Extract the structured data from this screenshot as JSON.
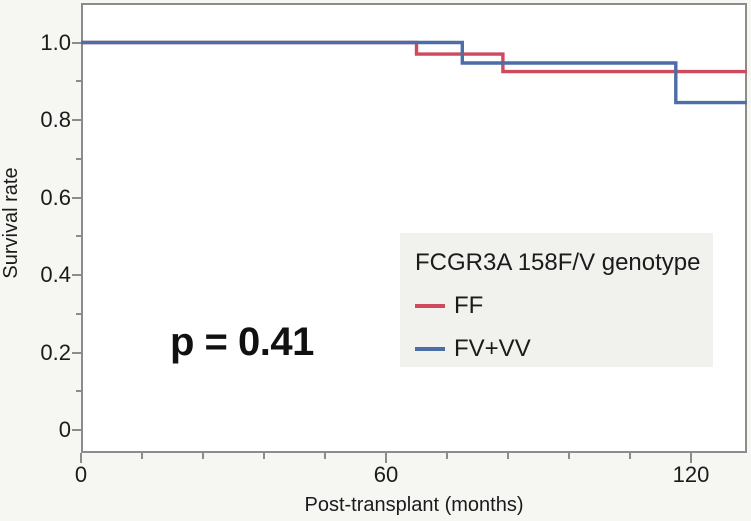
{
  "chart_data": {
    "type": "line",
    "subtype": "kaplan-meier-step-curve",
    "title": "",
    "xlabel": "Post-transplant (months)",
    "ylabel": "Survival rate",
    "xlim": [
      0,
      131
    ],
    "ylim": [
      -0.06,
      1.1
    ],
    "grid": false,
    "annotation": "p = 0.41",
    "x_axis": {
      "major_ticks": [
        {
          "value": 0,
          "label": "0"
        },
        {
          "value": 60,
          "label": "60"
        },
        {
          "value": 120,
          "label": "120"
        }
      ],
      "minor_tick_values": [
        12,
        24,
        36,
        48,
        72,
        84,
        96,
        108
      ]
    },
    "y_axis": {
      "major_ticks": [
        {
          "value": 1.0,
          "label": "1.0"
        },
        {
          "value": 0.8,
          "label": "0.8"
        },
        {
          "value": 0.6,
          "label": "0.6"
        },
        {
          "value": 0.4,
          "label": "0.4"
        },
        {
          "value": 0.2,
          "label": "0.2"
        },
        {
          "value": 0.0,
          "label": "0"
        }
      ],
      "minor_tick_values": [
        0.9,
        0.7,
        0.5,
        0.3,
        0.1
      ]
    },
    "legend": {
      "title": "FCGR3A 158F/V genotype",
      "position": "inside lower right",
      "entries": [
        {
          "label": "FF",
          "color": "#ce4a5d"
        },
        {
          "label": "FV+VV",
          "color": "#4c6da5"
        }
      ]
    },
    "series": [
      {
        "name": "FF",
        "color": "#ce4a5d",
        "step_points": [
          [
            0,
            1.0
          ],
          [
            66,
            1.0
          ],
          [
            66,
            0.97
          ],
          [
            83,
            0.97
          ],
          [
            83,
            0.925
          ],
          [
            131,
            0.925
          ]
        ]
      },
      {
        "name": "FV+VV",
        "color": "#4c6da5",
        "step_points": [
          [
            0,
            1.0
          ],
          [
            75,
            1.0
          ],
          [
            75,
            0.947
          ],
          [
            117,
            0.947
          ],
          [
            117,
            0.845
          ],
          [
            131,
            0.845
          ]
        ]
      }
    ]
  },
  "colors": {
    "axis": "#8c8c8c",
    "text": "#1b1b1b",
    "plot_background": "#ffffff",
    "outer_background": "#f6f6f3",
    "legend_background": "#f1f1ee"
  }
}
